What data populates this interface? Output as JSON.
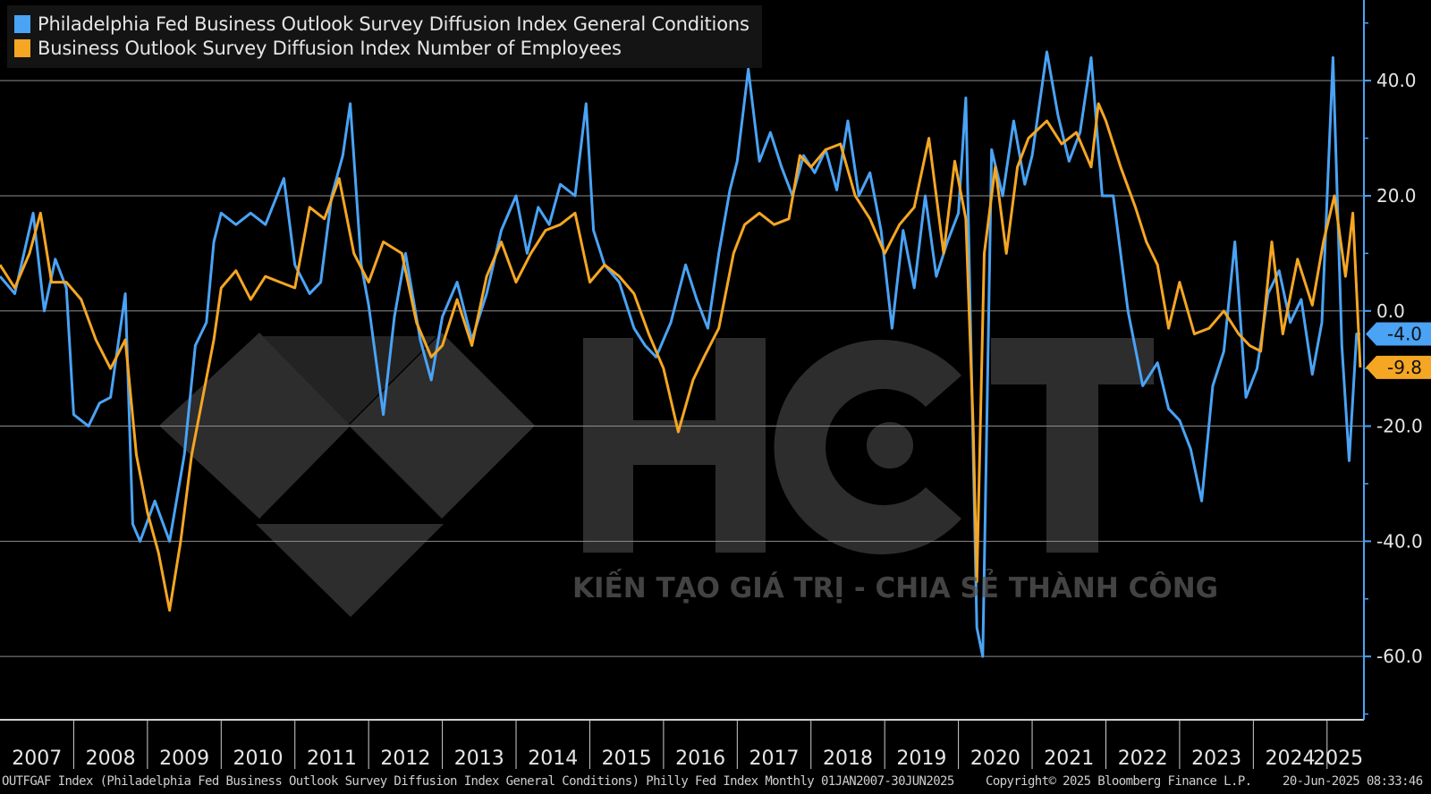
{
  "legend": {
    "series1": "Philadelphia Fed Business Outlook Survey Diffusion Index General Conditions",
    "series2": "Business Outlook Survey Diffusion Index Number of Employees"
  },
  "colors": {
    "series1": "#4aa3f5",
    "series2": "#f5a623",
    "grid": "#8c8c8c",
    "background": "#000000"
  },
  "watermark": {
    "logo_text": "HCT",
    "slogan": "KIẾN TẠO GIÁ TRỊ - CHIA SẺ THÀNH CÔNG"
  },
  "footer": {
    "source": "OUTFGAF Index (Philadelphia Fed Business Outlook Survey Diffusion Index General Conditions) Philly Fed Index  Monthly 01JAN2007-30JUN2025",
    "copyright": "Copyright© 2025 Bloomberg Finance L.P.",
    "timestamp": "20-Jun-2025 08:33:46"
  },
  "chart_data": {
    "type": "line",
    "x_range": [
      "2007-01",
      "2025-06"
    ],
    "ylim": [
      -71,
      54
    ],
    "y_ticks": [
      40.0,
      20.0,
      0.0,
      -20.0,
      -40.0,
      -60.0
    ],
    "y_tick_labels": [
      "40.0",
      "20.0",
      "0.0",
      "-20.0",
      "-40.0",
      "-60.0"
    ],
    "x_tick_labels": [
      "2007",
      "2008",
      "2009",
      "2010",
      "2011",
      "2012",
      "2013",
      "2014",
      "2015",
      "2016",
      "2017",
      "2018",
      "2019",
      "2020",
      "2021",
      "2022",
      "2023",
      "2024",
      "2025"
    ],
    "grid": true,
    "legend_position": "top-left",
    "last_value_labels": [
      {
        "series": "series1",
        "text": "-4.0"
      },
      {
        "series": "series2",
        "text": "-9.8"
      }
    ],
    "series": [
      {
        "name": "Philadelphia Fed Business Outlook Survey Diffusion Index General Conditions",
        "key": "series1",
        "points": [
          [
            2007.0,
            6
          ],
          [
            2007.2,
            3
          ],
          [
            2007.45,
            17
          ],
          [
            2007.6,
            0
          ],
          [
            2007.75,
            9
          ],
          [
            2007.9,
            4
          ],
          [
            2008.0,
            -18
          ],
          [
            2008.2,
            -20
          ],
          [
            2008.35,
            -16
          ],
          [
            2008.5,
            -15
          ],
          [
            2008.7,
            3
          ],
          [
            2008.8,
            -37
          ],
          [
            2008.9,
            -40
          ],
          [
            2009.1,
            -33
          ],
          [
            2009.3,
            -40
          ],
          [
            2009.5,
            -25
          ],
          [
            2009.65,
            -6
          ],
          [
            2009.8,
            -2
          ],
          [
            2009.9,
            12
          ],
          [
            2010.0,
            17
          ],
          [
            2010.2,
            15
          ],
          [
            2010.4,
            17
          ],
          [
            2010.6,
            15
          ],
          [
            2010.85,
            23
          ],
          [
            2011.0,
            8
          ],
          [
            2011.2,
            3
          ],
          [
            2011.35,
            5
          ],
          [
            2011.5,
            20
          ],
          [
            2011.65,
            27
          ],
          [
            2011.75,
            36
          ],
          [
            2011.9,
            8
          ],
          [
            2012.0,
            1
          ],
          [
            2012.2,
            -18
          ],
          [
            2012.35,
            -1
          ],
          [
            2012.5,
            10
          ],
          [
            2012.7,
            -5
          ],
          [
            2012.85,
            -12
          ],
          [
            2013.0,
            -1
          ],
          [
            2013.2,
            5
          ],
          [
            2013.4,
            -5
          ],
          [
            2013.6,
            3
          ],
          [
            2013.8,
            14
          ],
          [
            2014.0,
            20
          ],
          [
            2014.15,
            10
          ],
          [
            2014.3,
            18
          ],
          [
            2014.45,
            15
          ],
          [
            2014.6,
            22
          ],
          [
            2014.8,
            20
          ],
          [
            2014.95,
            36
          ],
          [
            2015.05,
            14
          ],
          [
            2015.2,
            8
          ],
          [
            2015.4,
            5
          ],
          [
            2015.6,
            -3
          ],
          [
            2015.75,
            -6
          ],
          [
            2015.9,
            -8
          ],
          [
            2016.1,
            -2
          ],
          [
            2016.3,
            8
          ],
          [
            2016.45,
            2
          ],
          [
            2016.6,
            -3
          ],
          [
            2016.75,
            10
          ],
          [
            2016.9,
            21
          ],
          [
            2017.0,
            26
          ],
          [
            2017.15,
            42
          ],
          [
            2017.3,
            26
          ],
          [
            2017.45,
            31
          ],
          [
            2017.6,
            25
          ],
          [
            2017.75,
            20
          ],
          [
            2017.9,
            27
          ],
          [
            2018.05,
            24
          ],
          [
            2018.2,
            28
          ],
          [
            2018.35,
            21
          ],
          [
            2018.5,
            33
          ],
          [
            2018.65,
            20
          ],
          [
            2018.8,
            24
          ],
          [
            2018.95,
            14
          ],
          [
            2019.1,
            -3
          ],
          [
            2019.25,
            14
          ],
          [
            2019.4,
            4
          ],
          [
            2019.55,
            20
          ],
          [
            2019.7,
            6
          ],
          [
            2019.85,
            12
          ],
          [
            2020.0,
            17
          ],
          [
            2020.1,
            37
          ],
          [
            2020.25,
            -55
          ],
          [
            2020.33,
            -60
          ],
          [
            2020.45,
            28
          ],
          [
            2020.6,
            20
          ],
          [
            2020.75,
            33
          ],
          [
            2020.9,
            22
          ],
          [
            2021.0,
            27
          ],
          [
            2021.2,
            45
          ],
          [
            2021.35,
            34
          ],
          [
            2021.5,
            26
          ],
          [
            2021.65,
            31
          ],
          [
            2021.8,
            44
          ],
          [
            2021.95,
            20
          ],
          [
            2022.1,
            20
          ],
          [
            2022.3,
            0
          ],
          [
            2022.5,
            -13
          ],
          [
            2022.7,
            -9
          ],
          [
            2022.85,
            -17
          ],
          [
            2023.0,
            -19
          ],
          [
            2023.15,
            -24
          ],
          [
            2023.3,
            -33
          ],
          [
            2023.45,
            -13
          ],
          [
            2023.6,
            -7
          ],
          [
            2023.75,
            12
          ],
          [
            2023.9,
            -15
          ],
          [
            2024.05,
            -10
          ],
          [
            2024.2,
            3
          ],
          [
            2024.35,
            7
          ],
          [
            2024.5,
            -2
          ],
          [
            2024.65,
            2
          ],
          [
            2024.8,
            -11
          ],
          [
            2024.93,
            -2
          ],
          [
            2025.08,
            44
          ],
          [
            2025.2,
            -6
          ],
          [
            2025.3,
            -26
          ],
          [
            2025.4,
            -4
          ],
          [
            2025.45,
            -4
          ]
        ]
      },
      {
        "name": "Business Outlook Survey Diffusion Index Number of Employees",
        "key": "series2",
        "points": [
          [
            2007.0,
            8
          ],
          [
            2007.2,
            4
          ],
          [
            2007.4,
            10
          ],
          [
            2007.55,
            17
          ],
          [
            2007.7,
            5
          ],
          [
            2007.9,
            5
          ],
          [
            2008.1,
            2
          ],
          [
            2008.3,
            -5
          ],
          [
            2008.5,
            -10
          ],
          [
            2008.7,
            -5
          ],
          [
            2008.85,
            -25
          ],
          [
            2009.0,
            -35
          ],
          [
            2009.15,
            -42
          ],
          [
            2009.3,
            -52
          ],
          [
            2009.45,
            -40
          ],
          [
            2009.6,
            -25
          ],
          [
            2009.75,
            -15
          ],
          [
            2009.9,
            -5
          ],
          [
            2010.0,
            4
          ],
          [
            2010.2,
            7
          ],
          [
            2010.4,
            2
          ],
          [
            2010.6,
            6
          ],
          [
            2010.8,
            5
          ],
          [
            2011.0,
            4
          ],
          [
            2011.2,
            18
          ],
          [
            2011.4,
            16
          ],
          [
            2011.6,
            23
          ],
          [
            2011.8,
            10
          ],
          [
            2012.0,
            5
          ],
          [
            2012.2,
            12
          ],
          [
            2012.45,
            10
          ],
          [
            2012.65,
            -2
          ],
          [
            2012.85,
            -8
          ],
          [
            2013.0,
            -6
          ],
          [
            2013.2,
            2
          ],
          [
            2013.4,
            -6
          ],
          [
            2013.6,
            6
          ],
          [
            2013.8,
            12
          ],
          [
            2014.0,
            5
          ],
          [
            2014.2,
            10
          ],
          [
            2014.4,
            14
          ],
          [
            2014.6,
            15
          ],
          [
            2014.8,
            17
          ],
          [
            2015.0,
            5
          ],
          [
            2015.2,
            8
          ],
          [
            2015.4,
            6
          ],
          [
            2015.6,
            3
          ],
          [
            2015.8,
            -4
          ],
          [
            2016.0,
            -10
          ],
          [
            2016.2,
            -21
          ],
          [
            2016.4,
            -12
          ],
          [
            2016.55,
            -8
          ],
          [
            2016.75,
            -3
          ],
          [
            2016.95,
            10
          ],
          [
            2017.1,
            15
          ],
          [
            2017.3,
            17
          ],
          [
            2017.5,
            15
          ],
          [
            2017.7,
            16
          ],
          [
            2017.85,
            27
          ],
          [
            2018.0,
            25
          ],
          [
            2018.2,
            28
          ],
          [
            2018.4,
            29
          ],
          [
            2018.6,
            20
          ],
          [
            2018.8,
            16
          ],
          [
            2019.0,
            10
          ],
          [
            2019.2,
            15
          ],
          [
            2019.4,
            18
          ],
          [
            2019.6,
            30
          ],
          [
            2019.8,
            10
          ],
          [
            2019.95,
            26
          ],
          [
            2020.1,
            16
          ],
          [
            2020.2,
            -20
          ],
          [
            2020.25,
            -47
          ],
          [
            2020.35,
            10
          ],
          [
            2020.5,
            25
          ],
          [
            2020.65,
            10
          ],
          [
            2020.8,
            25
          ],
          [
            2020.95,
            30
          ],
          [
            2021.2,
            33
          ],
          [
            2021.4,
            29
          ],
          [
            2021.6,
            31
          ],
          [
            2021.8,
            25
          ],
          [
            2021.9,
            36
          ],
          [
            2022.0,
            33
          ],
          [
            2022.2,
            25
          ],
          [
            2022.4,
            18
          ],
          [
            2022.55,
            12
          ],
          [
            2022.7,
            8
          ],
          [
            2022.85,
            -3
          ],
          [
            2023.0,
            5
          ],
          [
            2023.2,
            -4
          ],
          [
            2023.4,
            -3
          ],
          [
            2023.6,
            0
          ],
          [
            2023.8,
            -4
          ],
          [
            2023.95,
            -6
          ],
          [
            2024.1,
            -7
          ],
          [
            2024.25,
            12
          ],
          [
            2024.4,
            -4
          ],
          [
            2024.6,
            9
          ],
          [
            2024.8,
            1
          ],
          [
            2024.95,
            12
          ],
          [
            2025.1,
            20
          ],
          [
            2025.25,
            6
          ],
          [
            2025.35,
            17
          ],
          [
            2025.45,
            -9.8
          ]
        ]
      }
    ]
  }
}
